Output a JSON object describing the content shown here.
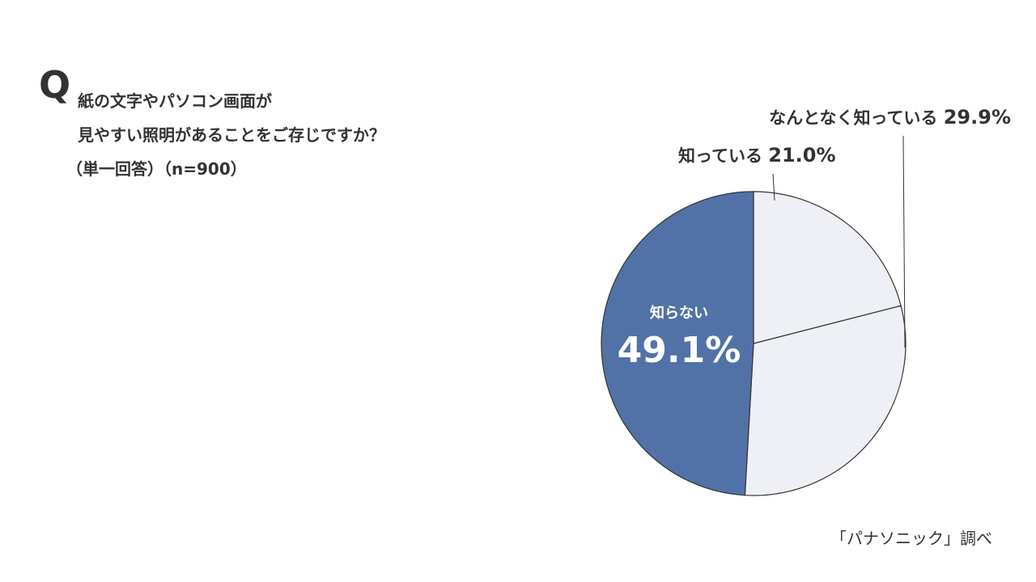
{
  "question": {
    "mark": "Q",
    "line1": "紙の文字やパソコン画面が",
    "line2": "見やすい照明があることをご存じですか？",
    "note": "（単一回答）（n=900）"
  },
  "source": "「パナソニック」調べ",
  "chart_data": {
    "type": "pie",
    "start_angle_deg": 0,
    "direction": "clockwise",
    "slices": [
      {
        "label": "知っている",
        "value": 21.0,
        "value_label": "21.0%",
        "color": "#eef0f5"
      },
      {
        "label": "なんとなく知っている",
        "value": 29.9,
        "value_label": "29.9%",
        "color": "#eef0f5"
      },
      {
        "label": "知らない",
        "value": 49.1,
        "value_label": "49.1%",
        "color": "#5272a7"
      }
    ],
    "stroke_color": "#333333"
  }
}
